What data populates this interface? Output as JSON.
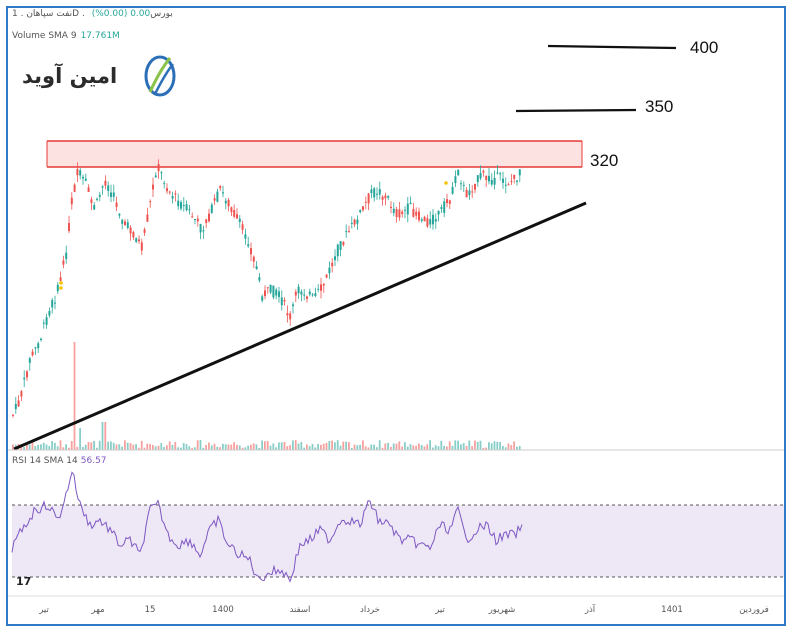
{
  "header": {
    "symbol_line": "نفت سپاهان . 1D . بورس",
    "change": "0.00 (0.00%)",
    "volume_label": "Volume SMA 9",
    "volume_value": "17.761M"
  },
  "logo": {
    "text": "امین آوید",
    "icon": "amin-avid-logo-icon"
  },
  "rsi": {
    "label": "RSI 14 SMA 14",
    "value": "56.57"
  },
  "watermark": {
    "text": "17"
  },
  "colors": {
    "border": "#2f79c6",
    "up": "#26a69a",
    "down": "#ef5350",
    "resistance_fill": "#fde2e2",
    "resistance_line": "#e53935",
    "rsi_line": "#7e57c2",
    "rsi_band": "#ede7f6",
    "trendline": "#111111"
  },
  "chart_data": {
    "type": "candlestick",
    "price_levels": [
      {
        "label": "400"
      },
      {
        "label": "350"
      },
      {
        "label": "320"
      }
    ],
    "x_tick_labels": [
      "تیر",
      "مهر",
      "15",
      "1400",
      "اسفند",
      "خرداد",
      "تیر",
      "شهریور",
      "آذر",
      "1401",
      "فروردین"
    ],
    "annotations": [
      "resistance zone",
      "ascending trendline"
    ],
    "rsi_levels": [
      70,
      30
    ],
    "grid": false
  }
}
